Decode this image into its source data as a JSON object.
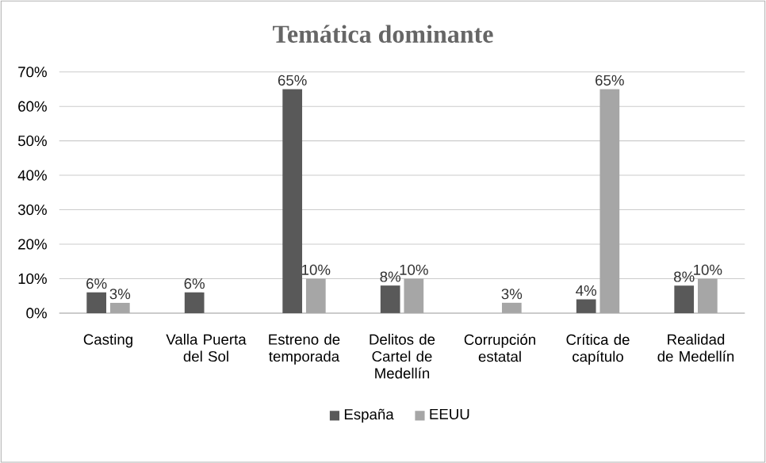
{
  "chart_data": {
    "type": "bar",
    "title": "Temática dominante",
    "categories": [
      "Casting",
      "Valla Puerta del Sol",
      "Estreno de temporada",
      "Delitos de Cartel de Medellín",
      "Corrupción estatal",
      "Crítica de capítulo",
      "Realidad de Medellín"
    ],
    "series": [
      {
        "name": "España",
        "color": "#595959",
        "values": [
          6,
          6,
          65,
          8,
          null,
          4,
          8
        ],
        "value_labels": [
          "6%",
          "6%",
          "65%",
          "8%",
          null,
          "4%",
          "8%"
        ]
      },
      {
        "name": "EEUU",
        "color": "#a6a6a6",
        "values": [
          3,
          null,
          10,
          10,
          3,
          65,
          10
        ],
        "value_labels": [
          "3%",
          null,
          "10%",
          "10%",
          "3%",
          "65%",
          "10%"
        ]
      }
    ],
    "ylim": [
      0,
      70
    ],
    "yticks": [
      {
        "value": 0,
        "label": "0%"
      },
      {
        "value": 10,
        "label": "10%"
      },
      {
        "value": 20,
        "label": "20%"
      },
      {
        "value": 30,
        "label": "30%"
      },
      {
        "value": 40,
        "label": "40%"
      },
      {
        "value": 50,
        "label": "50%"
      },
      {
        "value": 60,
        "label": "60%"
      },
      {
        "value": 70,
        "label": "70%"
      }
    ],
    "grid": "y",
    "legend": "bottom"
  }
}
